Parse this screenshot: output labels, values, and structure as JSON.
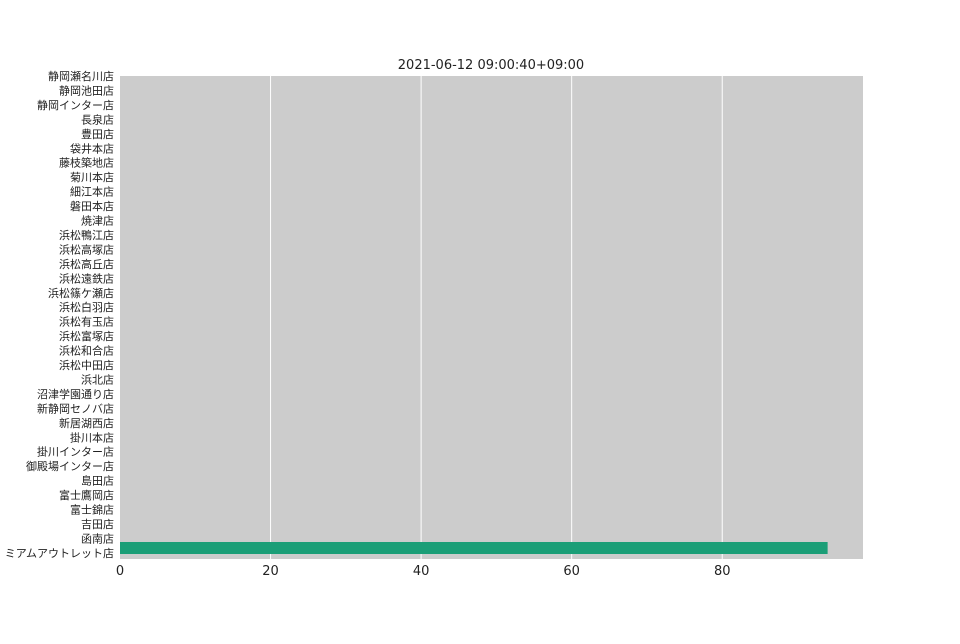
{
  "chart_data": {
    "type": "bar",
    "orientation": "horizontal",
    "title": "2021-06-12 09:00:40+09:00",
    "xlabel": "",
    "ylabel": "",
    "categories": [
      "静岡瀬名川店",
      "静岡池田店",
      "静岡インター店",
      "長泉店",
      "豊田店",
      "袋井本店",
      "藤枝築地店",
      "菊川本店",
      "細江本店",
      "磐田本店",
      "焼津店",
      "浜松鴨江店",
      "浜松高塚店",
      "浜松高丘店",
      "浜松遠鉄店",
      "浜松篠ケ瀬店",
      "浜松白羽店",
      "浜松有玉店",
      "浜松富塚店",
      "浜松和合店",
      "浜松中田店",
      "浜北店",
      "沼津学園通り店",
      "新静岡セノバ店",
      "新居湖西店",
      "掛川本店",
      "掛川インター店",
      "御殿場インター店",
      "島田店",
      "富士鷹岡店",
      "富士錦店",
      "吉田店",
      "函南店",
      "ミアムアウトレット店"
    ],
    "values": [
      0,
      0,
      0,
      0,
      0,
      0,
      0,
      0,
      0,
      0,
      0,
      0,
      0,
      0,
      0,
      0,
      0,
      0,
      0,
      0,
      0,
      0,
      0,
      0,
      0,
      0,
      0,
      0,
      0,
      0,
      0,
      0,
      0,
      94
    ],
    "x_ticks": [
      "0",
      "20",
      "40",
      "60",
      "80"
    ],
    "xlim": [
      0,
      98.7
    ],
    "grid": true,
    "bar_color": "#1b9e77",
    "plot_background": "#cccccc",
    "grid_color": "#ffffff"
  }
}
